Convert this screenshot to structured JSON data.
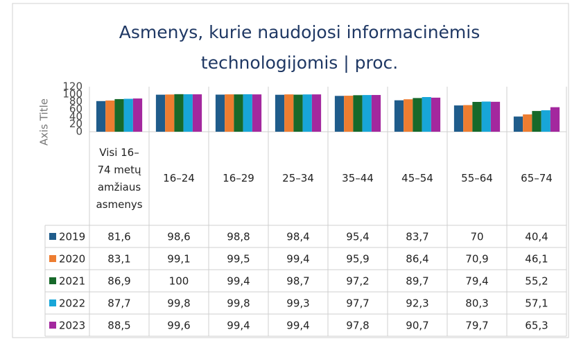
{
  "chart_data": {
    "type": "bar",
    "title": "Asmenys, kurie naudojosi informacinėmis technologijomis | proc.",
    "y_label": "Axis Title",
    "categories": [
      "Visi 16–74 metų amžiaus asmenys",
      "16–24",
      "16–29",
      "25–34",
      "35–44",
      "45–54",
      "55–64",
      "65–74"
    ],
    "series": [
      {
        "name": "2019",
        "color": "#1f5c8b",
        "values": [
          81.6,
          98.6,
          98.8,
          98.4,
          95.4,
          83.7,
          70,
          40.4
        ],
        "value_labels": [
          "81,6",
          "98,6",
          "98,8",
          "98,4",
          "95,4",
          "83,7",
          "70",
          "40,4"
        ]
      },
      {
        "name": "2020",
        "color": "#ed7d31",
        "values": [
          83.1,
          99.1,
          99.5,
          99.4,
          95.9,
          86.4,
          70.9,
          46.1
        ],
        "value_labels": [
          "83,1",
          "99,1",
          "99,5",
          "99,4",
          "95,9",
          "86,4",
          "70,9",
          "46,1"
        ]
      },
      {
        "name": "2021",
        "color": "#17692a",
        "values": [
          86.9,
          100,
          99.4,
          98.7,
          97.2,
          89.7,
          79.4,
          55.2
        ],
        "value_labels": [
          "86,9",
          "100",
          "99,4",
          "98,7",
          "97,2",
          "89,7",
          "79,4",
          "55,2"
        ]
      },
      {
        "name": "2022",
        "color": "#18a6d8",
        "values": [
          87.7,
          99.8,
          99.8,
          99.3,
          97.7,
          92.3,
          80.3,
          57.1
        ],
        "value_labels": [
          "87,7",
          "99,8",
          "99,8",
          "99,3",
          "97,7",
          "92,3",
          "80,3",
          "57,1"
        ]
      },
      {
        "name": "2023",
        "color": "#a3289e",
        "values": [
          88.5,
          99.6,
          99.4,
          99.4,
          97.8,
          90.7,
          79.7,
          65.3
        ],
        "value_labels": [
          "88,5",
          "99,6",
          "99,4",
          "99,4",
          "97,8",
          "90,7",
          "79,7",
          "65,3"
        ]
      }
    ],
    "ylim": [
      0,
      120
    ],
    "yticks": [
      0,
      20,
      40,
      60,
      80,
      100,
      120
    ],
    "grid": false
  }
}
